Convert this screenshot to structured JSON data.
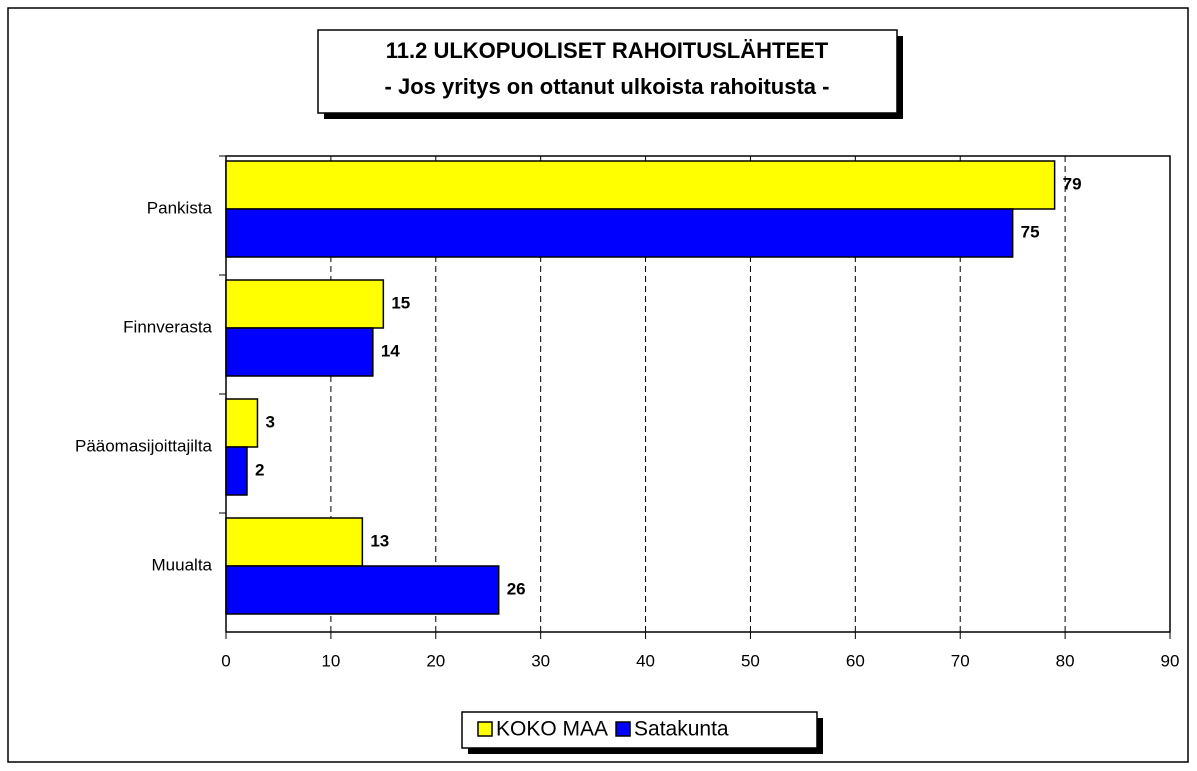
{
  "chart_data": {
    "type": "bar",
    "orientation": "horizontal",
    "title": "11.2 ULKOPUOLISET RAHOITUSLÄHTEET",
    "subtitle": "- Jos yritys on ottanut ulkoista rahoitusta -",
    "categories": [
      "Pankista",
      "Finnverasta",
      "Pääomasijoittajilta",
      "Muualta"
    ],
    "series": [
      {
        "name": "KOKO MAA",
        "color": "#ffff00",
        "values": [
          79,
          15,
          3,
          13
        ]
      },
      {
        "name": "Satakunta",
        "color": "#0000ff",
        "values": [
          75,
          14,
          2,
          26
        ]
      }
    ],
    "xlim": [
      0,
      90
    ],
    "xticks": [
      0,
      10,
      20,
      30,
      40,
      50,
      60,
      70,
      80,
      90
    ],
    "grid": true,
    "legend": "bottom"
  }
}
